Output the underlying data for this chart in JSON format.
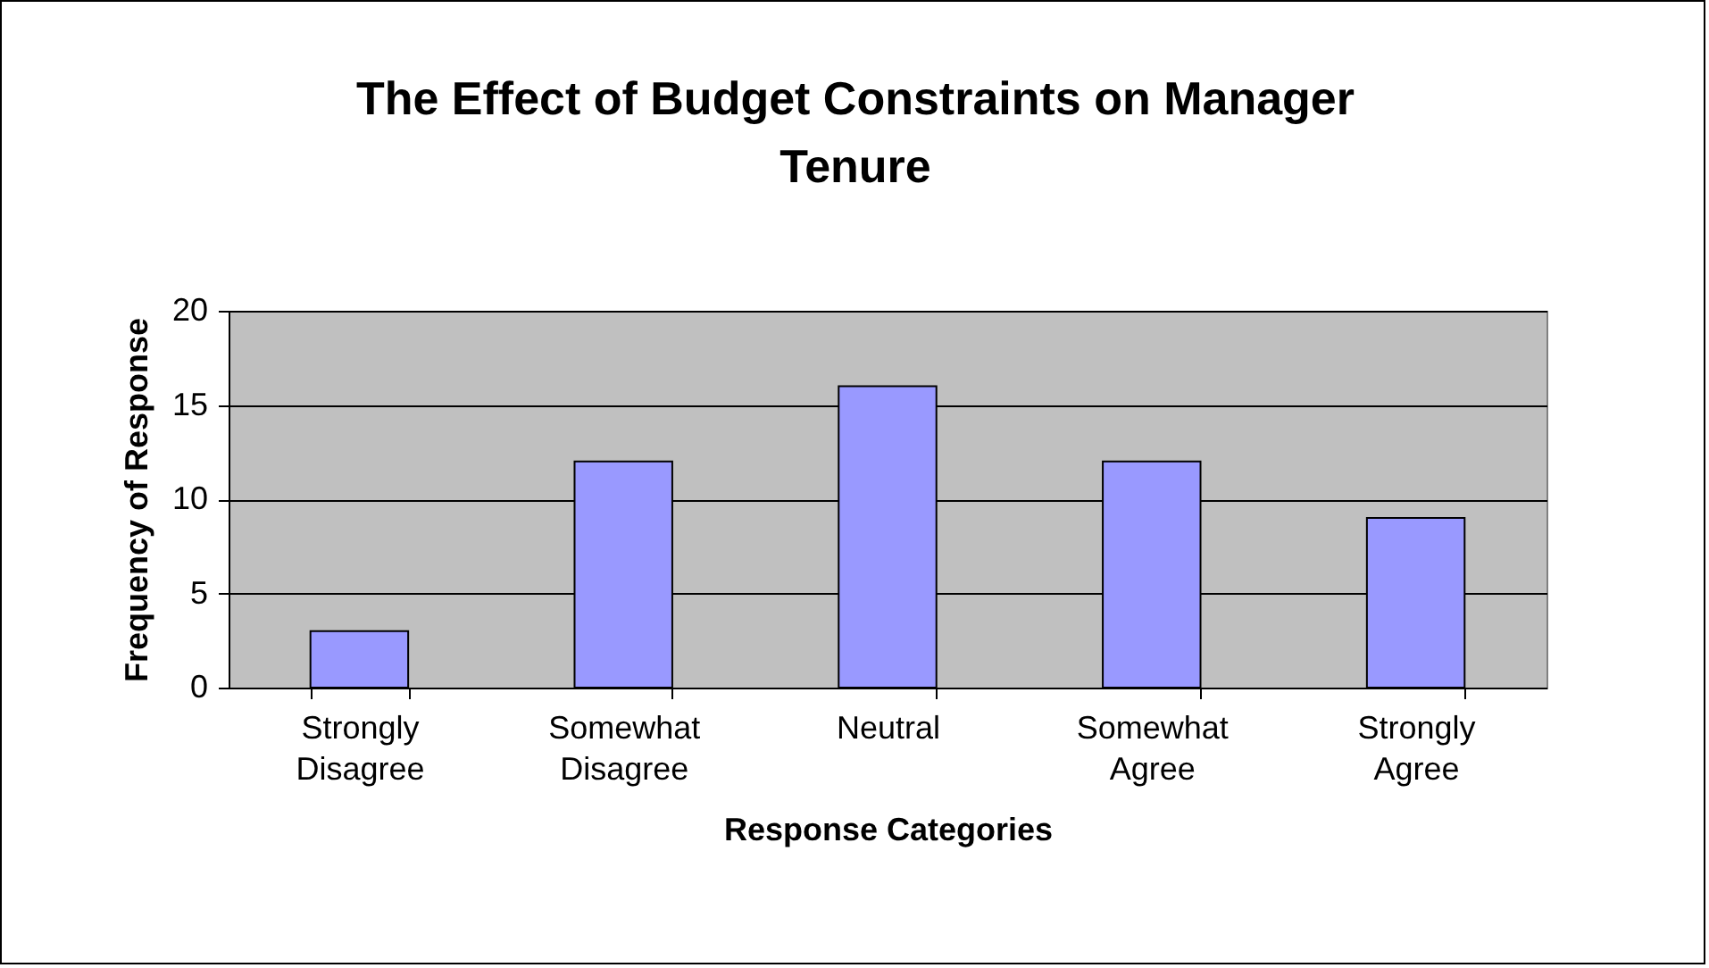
{
  "chart_data": {
    "type": "bar",
    "title": "The Effect of Budget Constraints on Manager Tenure",
    "xlabel": "Response Categories",
    "ylabel": "Frequency of Response",
    "categories": [
      "Strongly Disagree",
      "Somewhat Disagree",
      "Neutral",
      "Somewhat Agree",
      "Strongly Agree"
    ],
    "values": [
      3,
      12,
      16,
      12,
      9
    ],
    "color": "#9999ff",
    "ylim": [
      0,
      20
    ],
    "yticks": [
      0,
      5,
      10,
      15,
      20
    ],
    "grid": "y"
  }
}
